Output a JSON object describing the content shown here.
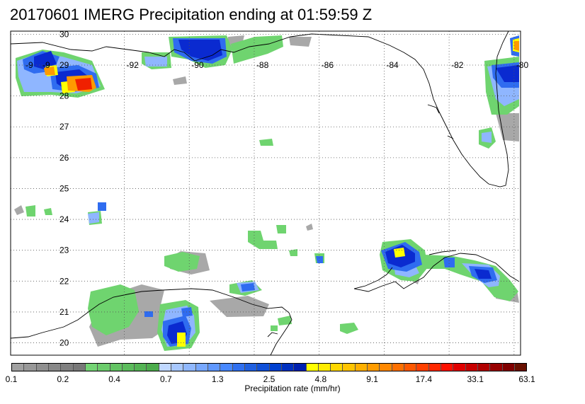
{
  "title": "20170601 IMERG Precipitation ending at 01:59:59 Z",
  "map": {
    "lon_range": [
      -95.5,
      -79.8
    ],
    "lat_range": [
      19.6,
      30.1
    ],
    "lon_labels": [
      "-92",
      "-90",
      "-88",
      "-86",
      "-84",
      "-82",
      "-80"
    ],
    "lon_values": [
      -92,
      -90,
      -88,
      -86,
      -84,
      -82,
      -80
    ],
    "lat_labels": [
      "20",
      "21",
      "22",
      "23",
      "24",
      "25",
      "26",
      "27",
      "28",
      "29",
      "30"
    ],
    "lat_values": [
      20,
      21,
      22,
      23,
      24,
      25,
      26,
      27,
      28,
      29,
      30
    ],
    "gridlines": "dotted",
    "overlapping_partial_labels": [
      "-9",
      "-9"
    ]
  },
  "colorbar": {
    "label": "Precipitation rate (mm/hr)",
    "tick_labels": [
      "0.1",
      "0.2",
      "0.4",
      "0.7",
      "1.3",
      "2.5",
      "4.8",
      "9.1",
      "17.4",
      "33.1",
      "63.1"
    ],
    "colors": [
      "#a0a0a0",
      "#989898",
      "#909090",
      "#888888",
      "#808080",
      "#787878",
      "#74d474",
      "#6ccc6c",
      "#64c464",
      "#5cbc5c",
      "#54b454",
      "#4cac4c",
      "#c0d8ff",
      "#a8c8ff",
      "#90b8ff",
      "#78a8ff",
      "#6098ff",
      "#4888ff",
      "#3070f0",
      "#2060e0",
      "#1050d8",
      "#0040d0",
      "#0030c0",
      "#0020b0",
      "#ffff00",
      "#ffec00",
      "#ffd800",
      "#ffc400",
      "#ffb000",
      "#ff9c00",
      "#ff8800",
      "#ff7000",
      "#ff5800",
      "#ff4000",
      "#ff2800",
      "#ff1000",
      "#e00000",
      "#c80000",
      "#b00000",
      "#980000",
      "#800000",
      "#681000"
    ]
  },
  "colors": {
    "coast": "#000000",
    "grid": "#555555",
    "gray": "#a8a8a8",
    "green": "#6fd46f",
    "lightblue": "#8fb6ff",
    "blue": "#2f6cf0",
    "darkblue": "#0a2ad0",
    "yellow": "#ffff00",
    "orange": "#ff9a00",
    "red": "#f02000"
  }
}
